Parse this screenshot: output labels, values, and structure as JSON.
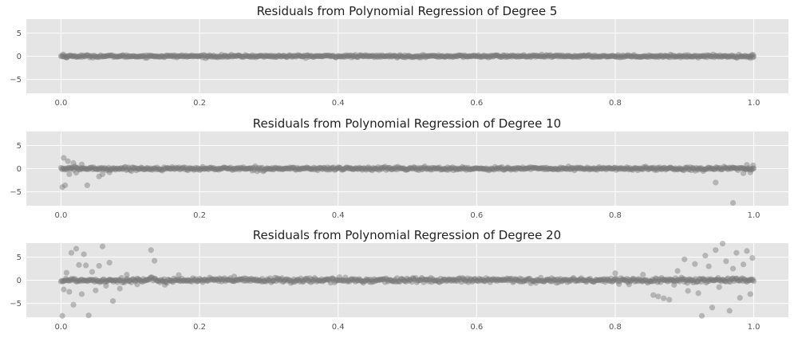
{
  "chart_data": [
    {
      "type": "scatter",
      "title": "Residuals from Polynomial Regression of Degree 5",
      "xlabel": "",
      "ylabel": "",
      "xlim": [
        -0.05,
        1.05
      ],
      "ylim": [
        -8,
        8
      ],
      "x_ticks": [
        0.0,
        0.2,
        0.4,
        0.6,
        0.8,
        1.0
      ],
      "x_tick_labels": [
        "0.0",
        "0.2",
        "0.4",
        "0.6",
        "0.8",
        "1.0"
      ],
      "y_ticks": [
        5,
        0,
        -5
      ],
      "y_tick_labels": [
        "5",
        "0",
        "−5"
      ],
      "grid": true,
      "background": "#e5e5e5",
      "point_color": "#777777",
      "point_alpha": 0.45,
      "points": {
        "band": {
          "x_range": [
            0.0,
            1.0
          ],
          "center": 0,
          "half_width": 0.25,
          "count": 700
        },
        "outliers": [
          {
            "x": 0.003,
            "y": 0.4
          },
          {
            "x": 0.008,
            "y": -0.3
          },
          {
            "x": 0.995,
            "y": -0.4
          },
          {
            "x": 0.999,
            "y": 0.3
          }
        ]
      }
    },
    {
      "type": "scatter",
      "title": "Residuals from Polynomial Regression of Degree 10",
      "xlabel": "",
      "ylabel": "",
      "xlim": [
        -0.05,
        1.05
      ],
      "ylim": [
        -8,
        8
      ],
      "x_ticks": [
        0.0,
        0.2,
        0.4,
        0.6,
        0.8,
        1.0
      ],
      "x_tick_labels": [
        "0.0",
        "0.2",
        "0.4",
        "0.6",
        "0.8",
        "1.0"
      ],
      "y_ticks": [
        5,
        0,
        -5
      ],
      "y_tick_labels": [
        "5",
        "0",
        "−5"
      ],
      "grid": true,
      "background": "#e5e5e5",
      "point_color": "#777777",
      "point_alpha": 0.45,
      "points": {
        "band": {
          "x_range": [
            0.0,
            1.0
          ],
          "center": 0,
          "half_width": 0.35,
          "count": 700
        },
        "outliers": [
          {
            "x": 0.002,
            "y": -4.0
          },
          {
            "x": 0.006,
            "y": -3.6
          },
          {
            "x": 0.004,
            "y": 2.3
          },
          {
            "x": 0.01,
            "y": 1.6
          },
          {
            "x": 0.012,
            "y": -1.2
          },
          {
            "x": 0.018,
            "y": 1.2
          },
          {
            "x": 0.022,
            "y": -0.9
          },
          {
            "x": 0.03,
            "y": 0.9
          },
          {
            "x": 0.038,
            "y": -3.6
          },
          {
            "x": 0.055,
            "y": -1.7
          },
          {
            "x": 0.06,
            "y": -1.2
          },
          {
            "x": 0.07,
            "y": -0.8
          },
          {
            "x": 0.945,
            "y": -3.0
          },
          {
            "x": 0.97,
            "y": -7.4
          },
          {
            "x": 0.985,
            "y": -1.0
          },
          {
            "x": 0.99,
            "y": 0.8
          },
          {
            "x": 0.995,
            "y": -0.8
          },
          {
            "x": 0.999,
            "y": 0.7
          }
        ]
      }
    },
    {
      "type": "scatter",
      "title": "Residuals from Polynomial Regression of Degree 20",
      "xlabel": "",
      "ylabel": "",
      "xlim": [
        -0.05,
        1.05
      ],
      "ylim": [
        -8,
        8
      ],
      "x_ticks": [
        0.0,
        0.2,
        0.4,
        0.6,
        0.8,
        1.0
      ],
      "x_tick_labels": [
        "0.0",
        "0.2",
        "0.4",
        "0.6",
        "0.8",
        "1.0"
      ],
      "y_ticks": [
        5,
        0,
        -5
      ],
      "y_tick_labels": [
        "5",
        "0",
        "−5"
      ],
      "grid": true,
      "background": "#e5e5e5",
      "point_color": "#777777",
      "point_alpha": 0.45,
      "points": {
        "band": {
          "x_range": [
            0.0,
            1.0
          ],
          "center": 0,
          "half_width": 0.5,
          "count": 700
        },
        "outliers": [
          {
            "x": 0.002,
            "y": -7.7
          },
          {
            "x": 0.004,
            "y": -2.0
          },
          {
            "x": 0.008,
            "y": 1.6
          },
          {
            "x": 0.012,
            "y": -2.5
          },
          {
            "x": 0.015,
            "y": 5.9
          },
          {
            "x": 0.018,
            "y": -5.3
          },
          {
            "x": 0.022,
            "y": 6.8
          },
          {
            "x": 0.026,
            "y": 3.3
          },
          {
            "x": 0.03,
            "y": -3.0
          },
          {
            "x": 0.033,
            "y": 5.6
          },
          {
            "x": 0.036,
            "y": 3.2
          },
          {
            "x": 0.04,
            "y": -7.6
          },
          {
            "x": 0.045,
            "y": 1.8
          },
          {
            "x": 0.05,
            "y": -2.2
          },
          {
            "x": 0.055,
            "y": 3.1
          },
          {
            "x": 0.06,
            "y": 7.3
          },
          {
            "x": 0.065,
            "y": -1.2
          },
          {
            "x": 0.07,
            "y": 3.8
          },
          {
            "x": 0.075,
            "y": -4.5
          },
          {
            "x": 0.085,
            "y": -1.8
          },
          {
            "x": 0.095,
            "y": 1.2
          },
          {
            "x": 0.11,
            "y": -0.9
          },
          {
            "x": 0.13,
            "y": 6.5
          },
          {
            "x": 0.135,
            "y": 4.2
          },
          {
            "x": 0.15,
            "y": -1.0
          },
          {
            "x": 0.17,
            "y": 1.1
          },
          {
            "x": 0.25,
            "y": 0.8
          },
          {
            "x": 0.8,
            "y": 1.5
          },
          {
            "x": 0.82,
            "y": -0.9
          },
          {
            "x": 0.84,
            "y": 1.2
          },
          {
            "x": 0.855,
            "y": -3.2
          },
          {
            "x": 0.862,
            "y": -3.5
          },
          {
            "x": 0.87,
            "y": -3.9
          },
          {
            "x": 0.878,
            "y": -4.2
          },
          {
            "x": 0.885,
            "y": -1.0
          },
          {
            "x": 0.89,
            "y": 2.0
          },
          {
            "x": 0.9,
            "y": 4.5
          },
          {
            "x": 0.905,
            "y": -2.3
          },
          {
            "x": 0.915,
            "y": 3.5
          },
          {
            "x": 0.92,
            "y": -2.8
          },
          {
            "x": 0.925,
            "y": -7.7
          },
          {
            "x": 0.93,
            "y": 5.3
          },
          {
            "x": 0.935,
            "y": 3.0
          },
          {
            "x": 0.94,
            "y": -5.9
          },
          {
            "x": 0.945,
            "y": 6.5
          },
          {
            "x": 0.95,
            "y": -1.5
          },
          {
            "x": 0.955,
            "y": 7.9
          },
          {
            "x": 0.96,
            "y": 4.1
          },
          {
            "x": 0.965,
            "y": -6.6
          },
          {
            "x": 0.97,
            "y": 2.5
          },
          {
            "x": 0.975,
            "y": 5.9
          },
          {
            "x": 0.98,
            "y": -3.8
          },
          {
            "x": 0.985,
            "y": 3.4
          },
          {
            "x": 0.99,
            "y": 6.3
          },
          {
            "x": 0.995,
            "y": -3.0
          },
          {
            "x": 0.998,
            "y": 4.8
          }
        ]
      }
    }
  ]
}
